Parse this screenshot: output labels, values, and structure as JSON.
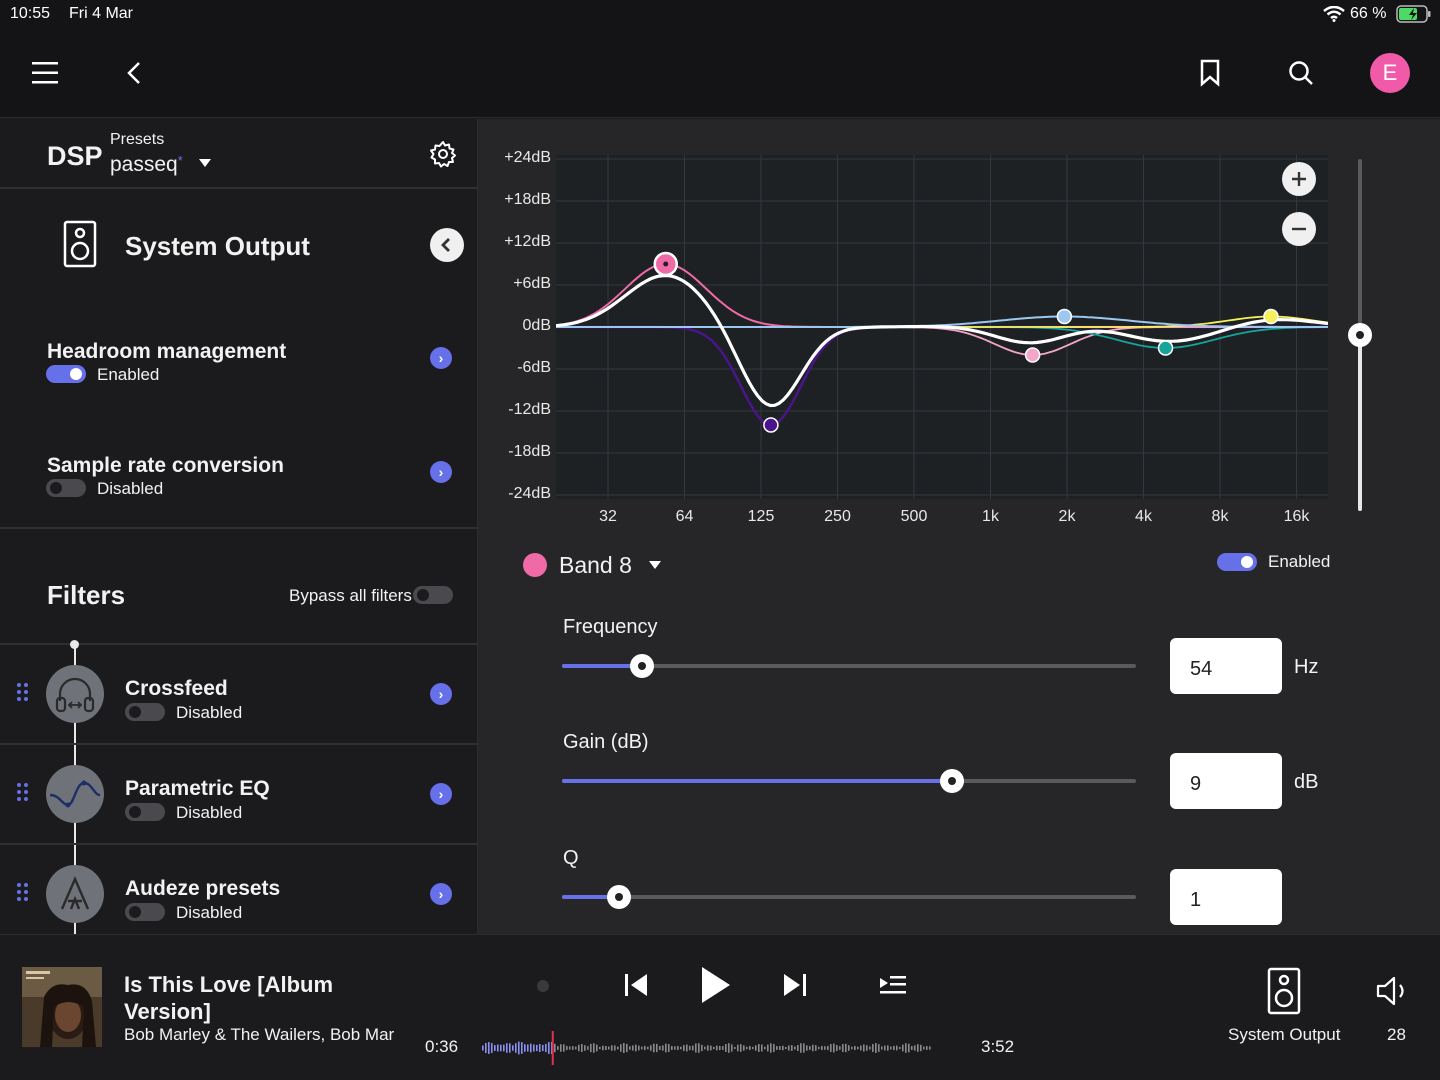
{
  "status_bar": {
    "time": "10:55",
    "date": "Fri 4 Mar",
    "battery": "66 %"
  },
  "top_bar": {
    "avatar_letter": "E"
  },
  "dsp": {
    "title": "DSP",
    "presets_label": "Presets",
    "preset_name": "passeq",
    "preset_modified": "*"
  },
  "output": {
    "name": "System Output"
  },
  "settings": [
    {
      "label": "Headroom management",
      "state": "Enabled",
      "on": true
    },
    {
      "label": "Sample rate conversion",
      "state": "Disabled",
      "on": false
    }
  ],
  "filters": {
    "title": "Filters",
    "bypass_label": "Bypass all filters",
    "items": [
      {
        "name": "Crossfeed",
        "state": "Disabled",
        "icon": "headphones-icon"
      },
      {
        "name": "Parametric EQ",
        "state": "Disabled",
        "icon": "eq-curve-icon"
      },
      {
        "name": "Audeze presets",
        "state": "Disabled",
        "icon": "audeze-logo-icon"
      }
    ]
  },
  "eq_graph": {
    "y_labels": [
      "+24dB",
      "+18dB",
      "+12dB",
      "+6dB",
      "0dB",
      "-6dB",
      "-12dB",
      "-18dB",
      "-24dB"
    ],
    "x_labels": [
      "32",
      "64",
      "125",
      "250",
      "500",
      "1k",
      "2k",
      "4k",
      "8k",
      "16k"
    ],
    "bands": [
      {
        "color": "#f06aa8",
        "freq_hz": 54,
        "gain_db": 9
      },
      {
        "color": "#4a148c",
        "freq_hz": 140,
        "gain_db": -14
      },
      {
        "color": "#f4a6c8",
        "freq_hz": 1500,
        "gain_db": -4
      },
      {
        "color": "#9cc8f0",
        "freq_hz": 2000,
        "gain_db": 1.5
      },
      {
        "color": "#16a39a",
        "freq_hz": 5000,
        "gain_db": -3
      },
      {
        "color": "#f4ef5a",
        "freq_hz": 13000,
        "gain_db": 1.5
      }
    ]
  },
  "band": {
    "name": "Band 8",
    "color": "#f06aa8",
    "enabled_label": "Enabled",
    "frequency": {
      "label": "Frequency",
      "value": "54",
      "unit": "Hz",
      "position": 0.14
    },
    "gain": {
      "label": "Gain (dB)",
      "value": "9",
      "unit": "dB",
      "position": 0.68
    },
    "q": {
      "label": "Q",
      "value": "1",
      "position": 0.1
    }
  },
  "player": {
    "title": "Is This Love [Album Version]",
    "artist": "Bob Marley & The Wailers, Bob Marl",
    "elapsed": "0:36",
    "duration": "3:52",
    "progress": 0.155,
    "output": "System Output",
    "volume": "28"
  },
  "colors": {
    "accent": "#6670e8",
    "avatar": "#f05aa8"
  }
}
